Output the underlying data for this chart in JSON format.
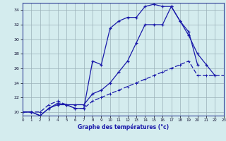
{
  "xlabel": "Graphe des températures (°c)",
  "xlim": [
    0,
    23
  ],
  "ylim": [
    19.5,
    35.0
  ],
  "yticks": [
    20,
    22,
    24,
    26,
    28,
    30,
    32,
    34
  ],
  "xticks": [
    0,
    1,
    2,
    3,
    4,
    5,
    6,
    7,
    8,
    9,
    10,
    11,
    12,
    13,
    14,
    15,
    16,
    17,
    18,
    19,
    20,
    21,
    22,
    23
  ],
  "background_color": "#d4ecee",
  "grid_color": "#9ab0b8",
  "line_color": "#1a1aaa",
  "line1_y": [
    20.0,
    20.0,
    19.5,
    20.5,
    21.0,
    21.0,
    20.5,
    20.5,
    27.0,
    26.5,
    31.5,
    32.5,
    33.0,
    33.0,
    34.5,
    34.8,
    34.5,
    34.5,
    32.5,
    30.5,
    28.0,
    26.5,
    25.0,
    null
  ],
  "line2_y": [
    20.0,
    20.0,
    19.5,
    20.5,
    21.2,
    21.0,
    21.0,
    21.0,
    22.5,
    23.0,
    24.0,
    25.5,
    27.0,
    29.5,
    32.0,
    32.0,
    32.0,
    34.5,
    32.5,
    31.0,
    26.5,
    null,
    null,
    null
  ],
  "line3_y": [
    20.0,
    20.0,
    20.0,
    21.0,
    21.5,
    21.0,
    20.5,
    20.5,
    21.5,
    22.0,
    22.5,
    23.0,
    23.5,
    24.0,
    24.5,
    25.0,
    25.5,
    26.0,
    26.5,
    27.0,
    25.0,
    25.0,
    25.0,
    25.0
  ]
}
